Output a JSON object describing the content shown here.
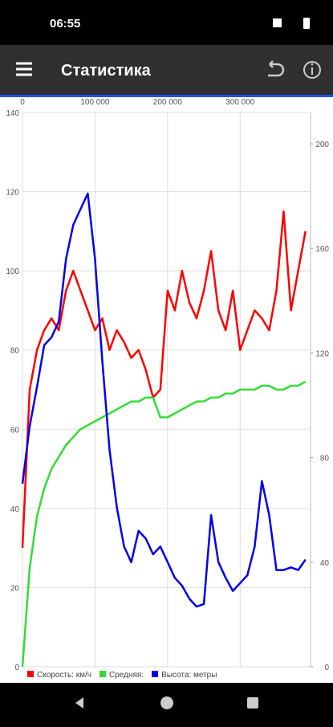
{
  "status_bar": {
    "time": "06:55"
  },
  "app_bar": {
    "title": "Статистика"
  },
  "chart_data": {
    "type": "line",
    "x": [
      0,
      10000,
      20000,
      30000,
      40000,
      50000,
      60000,
      70000,
      80000,
      90000,
      100000,
      110000,
      120000,
      130000,
      140000,
      150000,
      160000,
      170000,
      180000,
      190000,
      200000,
      210000,
      220000,
      230000,
      240000,
      250000,
      260000,
      270000,
      280000,
      290000,
      300000,
      310000,
      320000,
      330000,
      340000,
      350000,
      360000,
      370000,
      380000,
      390000
    ],
    "xlim": [
      0,
      397000
    ],
    "xticks": [
      0,
      {
        "value": 100000,
        "label": "100 000"
      },
      {
        "value": 200000,
        "label": "200 000"
      },
      {
        "value": 300000,
        "label": "300 000"
      }
    ],
    "ylim": [
      0,
      140
    ],
    "yticks": [
      0,
      20,
      40,
      60,
      80,
      100,
      120,
      140
    ],
    "y2lim": [
      0,
      212
    ],
    "y2ticks": [
      0,
      40,
      80,
      120,
      160,
      200
    ],
    "grid": true,
    "legend": "bottom-left",
    "series": [
      {
        "name": "Скорость: км/ч",
        "color": "#ff0000",
        "values": [
          30,
          70,
          80,
          85,
          88,
          85,
          95,
          100,
          95,
          90,
          85,
          88,
          80,
          85,
          82,
          78,
          80,
          75,
          68,
          70,
          95,
          90,
          100,
          92,
          88,
          95,
          105,
          90,
          85,
          95,
          80,
          85,
          90,
          88,
          85,
          95,
          115,
          90,
          100,
          110
        ]
      },
      {
        "name": "Средняя:",
        "color": "#33dd33",
        "values": [
          0,
          25,
          38,
          45,
          50,
          53,
          56,
          58,
          60,
          61,
          62,
          63,
          64,
          65,
          66,
          67,
          67,
          68,
          68,
          63,
          63,
          64,
          65,
          66,
          67,
          67,
          68,
          68,
          69,
          69,
          70,
          70,
          70,
          71,
          71,
          70,
          70,
          71,
          71,
          72
        ]
      },
      {
        "name": "Высота: метры",
        "color": "#0000ee",
        "axis": "y2",
        "values": [
          70,
          92,
          107,
          123,
          126,
          132,
          156,
          169,
          175,
          181,
          156,
          117,
          83,
          61,
          46,
          40,
          52,
          49,
          43,
          46,
          40,
          34,
          31,
          26,
          23,
          24,
          58,
          40,
          34,
          29,
          32,
          35,
          46,
          71,
          58,
          37,
          37,
          38,
          37,
          41
        ]
      }
    ]
  }
}
